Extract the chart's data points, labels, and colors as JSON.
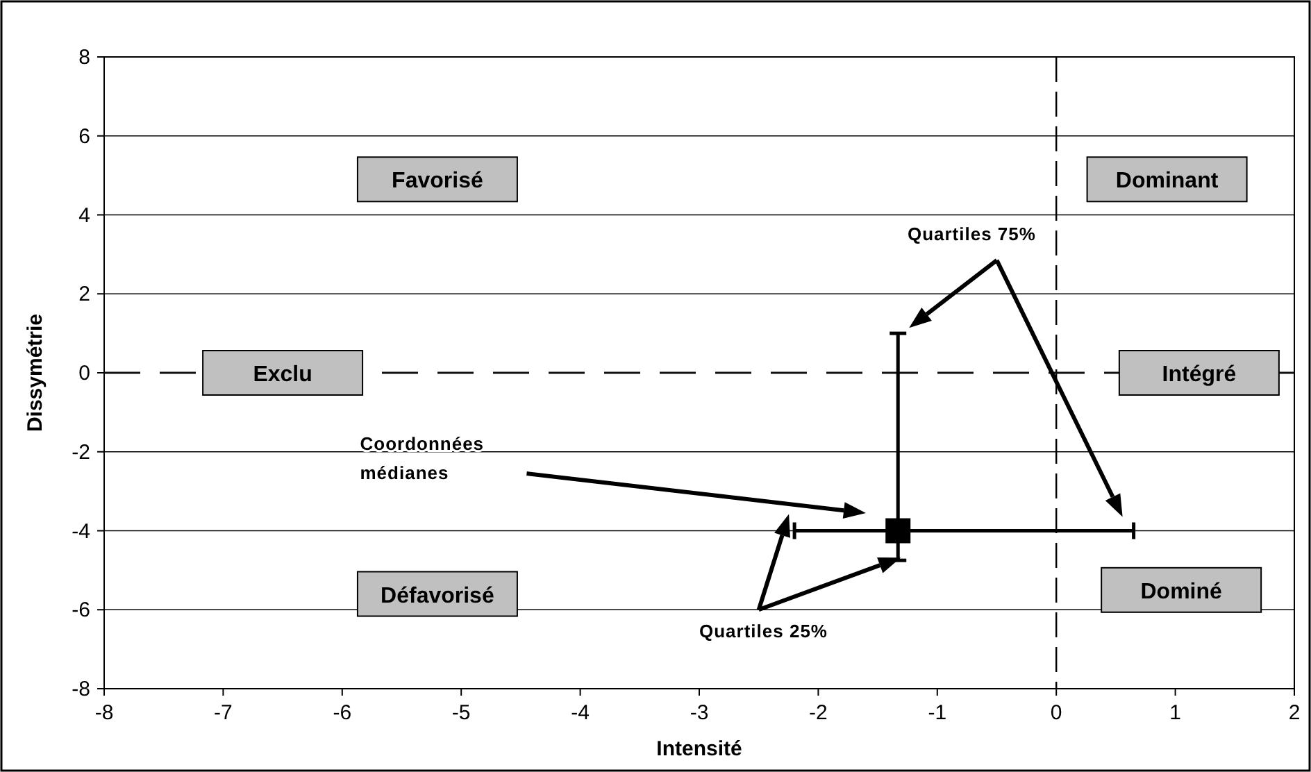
{
  "chart_data": {
    "type": "scatter",
    "xlabel": "Intensité",
    "ylabel": "Dissymétrie",
    "x": [
      -1.33
    ],
    "values": [
      -4
    ],
    "color": "#000000",
    "marker": "square",
    "errors": [
      [
        -4.75,
        1
      ]
    ],
    "xerrors": [
      [
        -2.2,
        0.65
      ]
    ],
    "xlim": [
      -8,
      2
    ],
    "xticks": [
      -8,
      -7,
      -6,
      -5,
      -4,
      -3,
      -2,
      -1,
      0,
      1,
      2
    ],
    "ylim": [
      -8,
      8
    ],
    "yticks": [
      -8,
      -6,
      -4,
      -2,
      0,
      2,
      4,
      6,
      8
    ],
    "grid": "y",
    "ref_lines": [
      {
        "axis": "x",
        "value": 0,
        "line_style": "dashed"
      },
      {
        "axis": "y",
        "value": 0,
        "line_style": "dashed"
      }
    ],
    "annotations": [
      "Favorisé",
      "Dominant",
      "Exclu",
      "Intégré",
      "Défavorisé",
      "Dominé",
      "Coordonnées\nmédianes",
      "Quartiles 75%",
      "Quartiles 25%"
    ]
  }
}
